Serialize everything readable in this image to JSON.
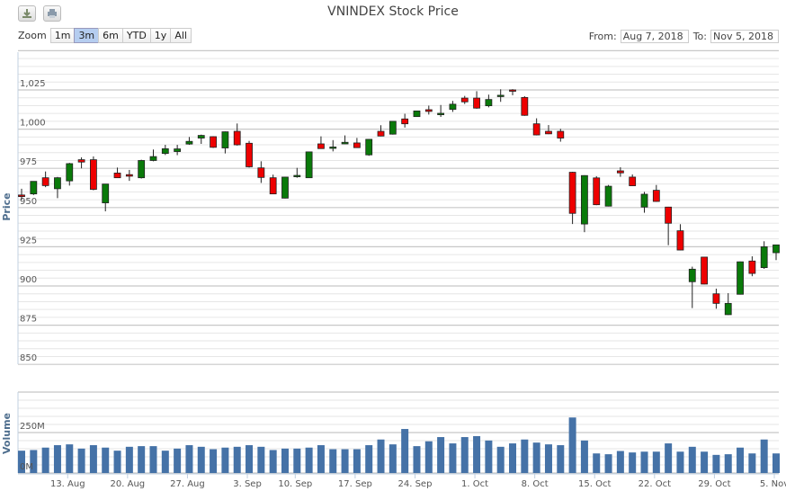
{
  "toolbar": {
    "download_icon": "download-icon",
    "print_icon": "print-icon"
  },
  "zoom": {
    "label": "Zoom",
    "buttons": [
      "1m",
      "3m",
      "6m",
      "YTD",
      "1y",
      "All"
    ],
    "selected": "3m"
  },
  "range": {
    "from_label": "From:",
    "from_value": "Aug 7, 2018",
    "to_label": "To:",
    "to_value": "Nov 5, 2018"
  },
  "colors": {
    "up": "#0a7a0a",
    "down": "#ee0000",
    "volume": "#4572a7",
    "grid": "#e6e6e6",
    "grid_major": "#c8c8c8"
  },
  "chart_data": {
    "type": "candlestick",
    "title": "VNINDEX Stock Price",
    "price_axis": {
      "label": "Price",
      "ticks": [
        "850",
        "875",
        "900",
        "925",
        "950",
        "975",
        "1,000",
        "1,025"
      ],
      "tick_values": [
        850,
        875,
        900,
        925,
        950,
        975,
        1000,
        1025
      ],
      "range": [
        850,
        1050
      ],
      "minor_step": 5,
      "grid": true
    },
    "volume_axis": {
      "label": "Volume",
      "ticks": [
        "0M",
        "250M"
      ],
      "tick_values": [
        0,
        250
      ],
      "range": [
        0,
        500
      ],
      "minor_step": 50,
      "unit": "M"
    },
    "xticks": [
      {
        "label": "13. Aug",
        "date": "2018-08-13"
      },
      {
        "label": "20. Aug",
        "date": "2018-08-20"
      },
      {
        "label": "27. Aug",
        "date": "2018-08-27"
      },
      {
        "label": "3. Sep",
        "date": "2018-09-04"
      },
      {
        "label": "10. Sep",
        "date": "2018-09-10"
      },
      {
        "label": "17. Sep",
        "date": "2018-09-17"
      },
      {
        "label": "24. Sep",
        "date": "2018-09-24"
      },
      {
        "label": "1. Oct",
        "date": "2018-10-01"
      },
      {
        "label": "8. Oct",
        "date": "2018-10-08"
      },
      {
        "label": "15. Oct",
        "date": "2018-10-15"
      },
      {
        "label": "22. Oct",
        "date": "2018-10-22"
      },
      {
        "label": "29. Oct",
        "date": "2018-10-29"
      },
      {
        "label": "5. Nov",
        "date": "2018-11-05"
      }
    ],
    "dates": [
      "2018-08-07",
      "2018-08-08",
      "2018-08-09",
      "2018-08-10",
      "2018-08-13",
      "2018-08-14",
      "2018-08-15",
      "2018-08-16",
      "2018-08-17",
      "2018-08-20",
      "2018-08-21",
      "2018-08-22",
      "2018-08-23",
      "2018-08-24",
      "2018-08-27",
      "2018-08-28",
      "2018-08-29",
      "2018-08-30",
      "2018-08-31",
      "2018-09-04",
      "2018-09-05",
      "2018-09-06",
      "2018-09-07",
      "2018-09-10",
      "2018-09-11",
      "2018-09-12",
      "2018-09-13",
      "2018-09-14",
      "2018-09-17",
      "2018-09-18",
      "2018-09-19",
      "2018-09-20",
      "2018-09-21",
      "2018-09-24",
      "2018-09-25",
      "2018-09-26",
      "2018-09-27",
      "2018-09-28",
      "2018-10-01",
      "2018-10-02",
      "2018-10-03",
      "2018-10-04",
      "2018-10-05",
      "2018-10-08",
      "2018-10-09",
      "2018-10-10",
      "2018-10-11",
      "2018-10-12",
      "2018-10-15",
      "2018-10-16",
      "2018-10-17",
      "2018-10-18",
      "2018-10-19",
      "2018-10-22",
      "2018-10-23",
      "2018-10-24",
      "2018-10-25",
      "2018-10-26",
      "2018-10-29",
      "2018-10-30",
      "2018-10-31",
      "2018-11-01",
      "2018-11-02",
      "2018-11-05"
    ],
    "ohlc": [
      [
        958,
        962,
        955,
        957
      ],
      [
        958.7,
        966.7,
        958,
        966.7
      ],
      [
        969,
        973,
        963,
        964
      ],
      [
        962,
        969.5,
        956,
        969
      ],
      [
        967,
        978.5,
        964,
        978
      ],
      [
        980.5,
        982,
        975,
        979
      ],
      [
        980.5,
        982.6,
        961,
        961.6
      ],
      [
        953,
        965,
        947.6,
        965
      ],
      [
        972,
        975.5,
        969,
        969
      ],
      [
        971,
        974,
        967,
        970
      ],
      [
        969,
        980.5,
        968.5,
        980
      ],
      [
        980,
        987,
        979.5,
        982.5
      ],
      [
        984.5,
        990,
        983.5,
        987.5
      ],
      [
        985.7,
        990,
        983.4,
        987.4
      ],
      [
        990.5,
        995,
        990,
        992.2
      ],
      [
        994.3,
        996.5,
        990.6,
        996
      ],
      [
        995.2,
        995.5,
        988,
        988.4
      ],
      [
        988,
        998.5,
        984.5,
        998.3
      ],
      [
        998.6,
        1003.6,
        989.5,
        990
      ],
      [
        991,
        992.5,
        975.5,
        976
      ],
      [
        975.3,
        979.5,
        965.7,
        969.2
      ],
      [
        969,
        971,
        958.5,
        958.7
      ],
      [
        956,
        969.5,
        955.8,
        969.4
      ],
      [
        970,
        975.3,
        969,
        970.5
      ],
      [
        969,
        985.5,
        969,
        985.5
      ],
      [
        990.6,
        995.4,
        987.5,
        987.6
      ],
      [
        988,
        993,
        985.8,
        988.6
      ],
      [
        990.6,
        996,
        990.5,
        991.6
      ],
      [
        991.2,
        994.4,
        988,
        988.2
      ],
      [
        983.6,
        993.7,
        983,
        993.5
      ],
      [
        998.6,
        1002.5,
        995.4,
        995.6
      ],
      [
        996.8,
        1005,
        996.5,
        1005
      ],
      [
        1006.5,
        1009.8,
        1001,
        1003.4
      ],
      [
        1008,
        1011.8,
        1008,
        1011.6
      ],
      [
        1012.4,
        1015,
        1009.3,
        1011.3
      ],
      [
        1009.2,
        1015.4,
        1007.8,
        1010.1
      ],
      [
        1012.6,
        1018,
        1011,
        1015.9
      ],
      [
        1019.8,
        1021.2,
        1016,
        1017.4
      ],
      [
        1019.8,
        1024.2,
        1013,
        1013.4
      ],
      [
        1014.9,
        1022,
        1013.9,
        1018.9
      ],
      [
        1021.2,
        1025.4,
        1017.4,
        1021.6
      ],
      [
        1025,
        1025.5,
        1021.6,
        1024.3
      ],
      [
        1020.2,
        1021,
        1008.5,
        1008.8
      ],
      [
        1003.4,
        1006.9,
        996,
        996.3
      ],
      [
        998.6,
        1002.6,
        996.8,
        997
      ],
      [
        998.6,
        1000.2,
        992,
        994.3
      ],
      [
        972.5,
        972.8,
        939.5,
        946.3
      ],
      [
        939.5,
        970.6,
        934.3,
        970.4
      ],
      [
        968.9,
        970,
        951.5,
        951.8
      ],
      [
        950.9,
        964.4,
        950.7,
        963.6
      ],
      [
        973.4,
        975.7,
        969.6,
        972.1
      ],
      [
        969.4,
        971.1,
        963.7,
        963.9
      ],
      [
        950.3,
        960,
        946.7,
        958.5
      ],
      [
        961,
        964.4,
        953.7,
        953.9
      ],
      [
        950.3,
        950.5,
        926,
        940
      ],
      [
        935.2,
        939.4,
        922.7,
        922.9
      ],
      [
        902.7,
        912.3,
        885.9,
        910.7
      ],
      [
        918.4,
        918.6,
        901,
        901.2
      ],
      [
        895,
        898.3,
        885.5,
        888.9
      ],
      [
        881.7,
        895.4,
        881.5,
        888.9
      ],
      [
        894.7,
        915.6,
        894.5,
        915.4
      ],
      [
        915.9,
        918.9,
        906.2,
        908
      ],
      [
        911.7,
        928.5,
        910.9,
        925
      ],
      [
        921.2,
        926.4,
        916.5,
        926.2
      ]
    ],
    "volume_millions": [
      138,
      142,
      157,
      172,
      177,
      151,
      172,
      157,
      138,
      162,
      166,
      166,
      138,
      151,
      172,
      162,
      147,
      157,
      162,
      172,
      162,
      142,
      151,
      151,
      157,
      172,
      147,
      147,
      147,
      172,
      207,
      177,
      272,
      166,
      196,
      222,
      183,
      222,
      228,
      201,
      162,
      183,
      207,
      188,
      177,
      172,
      343,
      201,
      121,
      116,
      136,
      127,
      132,
      132,
      183,
      132,
      162,
      132,
      112,
      116,
      157,
      121,
      207,
      121
    ]
  }
}
